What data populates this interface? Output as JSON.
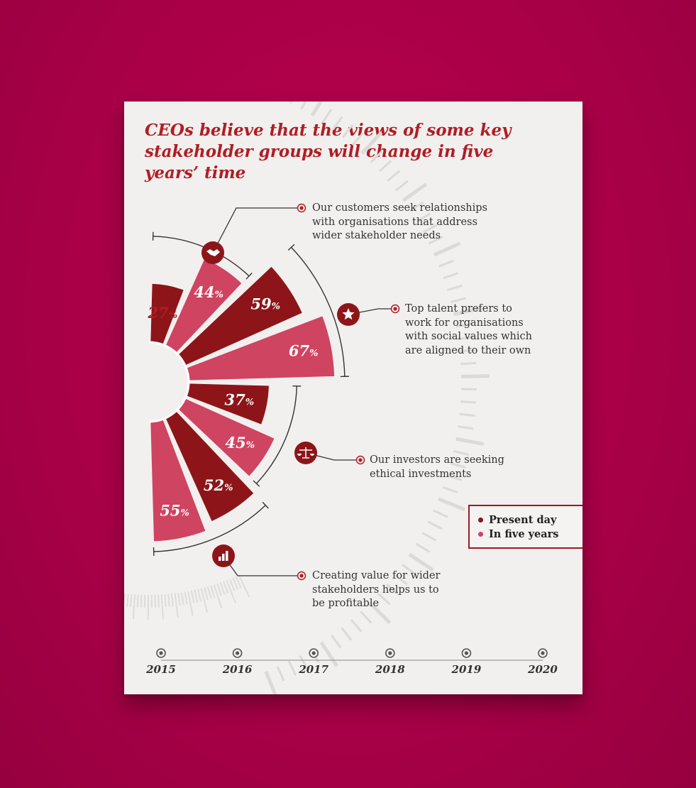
{
  "title": "CEOs believe that the views of some key stakeholder groups will change in five years’ time",
  "colors": {
    "present": "#8d1519",
    "future": "#cf4460",
    "accent": "#b01d24",
    "background": "#b0004a"
  },
  "legend": [
    {
      "label": "Present day",
      "color": "#8d1519"
    },
    {
      "label": "In five years",
      "color": "#cf4460"
    }
  ],
  "chart_data": {
    "type": "bar",
    "layout": "radial",
    "unit": "%",
    "series": [
      {
        "name": "Present day",
        "values": [
          27,
          59,
          37,
          52
        ]
      },
      {
        "name": "In five years",
        "values": [
          44,
          67,
          45,
          55
        ]
      }
    ],
    "categories": [
      "Our customers seek relationships with organisations that address wider stakeholder needs",
      "Top talent prefers to work for organisations with social values which are aligned to their own",
      "Our investors are seeking ethical investments",
      "Creating value for wider stakeholders helps us to be profitable"
    ],
    "bars": [
      {
        "value": 27,
        "label": "27",
        "series": "Present day"
      },
      {
        "value": 44,
        "label": "44",
        "series": "In five years"
      },
      {
        "value": 59,
        "label": "59",
        "series": "Present day"
      },
      {
        "value": 67,
        "label": "67",
        "series": "In five years"
      },
      {
        "value": 37,
        "label": "37",
        "series": "Present day"
      },
      {
        "value": 45,
        "label": "45",
        "series": "In five years"
      },
      {
        "value": 52,
        "label": "52",
        "series": "Present day"
      },
      {
        "value": 55,
        "label": "55",
        "series": "In five years"
      }
    ],
    "value_suffix": "%",
    "ylim": [
      0,
      67
    ]
  },
  "callouts": [
    {
      "text_lines": [
        "Our customers seek relationships",
        "with organisations that address",
        "wider stakeholder needs"
      ],
      "icon": "handshake-icon"
    },
    {
      "text_lines": [
        "Top talent prefers to",
        "work for organisations",
        "with social values which",
        "are aligned to their own"
      ],
      "icon": "star-icon"
    },
    {
      "text_lines": [
        "Our investors are seeking",
        "ethical investments"
      ],
      "icon": "scales-icon"
    },
    {
      "text_lines": [
        "Creating value for wider",
        "stakeholders helps us to",
        "be profitable"
      ],
      "icon": "bar-chart-icon"
    }
  ],
  "timeline": [
    "2015",
    "2016",
    "2017",
    "2018",
    "2019",
    "2020"
  ]
}
